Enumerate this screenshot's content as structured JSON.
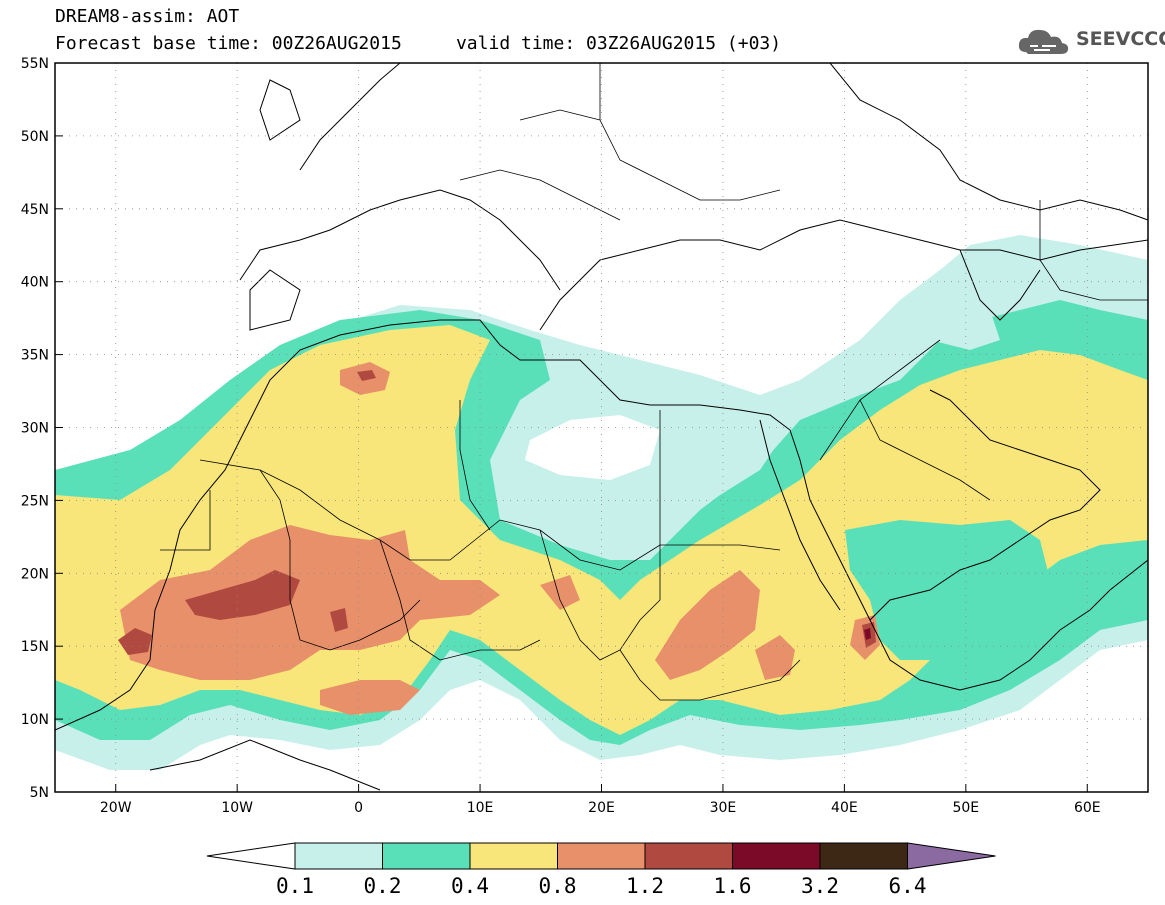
{
  "header": {
    "title_line1": "DREAM8-assim: AOT",
    "title_line2": "Forecast base time: 00Z26AUG2015     valid time: 03Z26AUG2015 (+03)"
  },
  "logo": {
    "text": "SEEVCCC",
    "icon": "cloud-icon",
    "color": "#666666"
  },
  "map": {
    "lon_range": [
      -25,
      65
    ],
    "lat_range": [
      5,
      55
    ],
    "lat_labels": [
      "55N",
      "50N",
      "45N",
      "40N",
      "35N",
      "30N",
      "25N",
      "20N",
      "15N",
      "10N",
      "5N"
    ],
    "lat_values": [
      55,
      50,
      45,
      40,
      35,
      30,
      25,
      20,
      15,
      10,
      5
    ],
    "lon_labels": [
      "20W",
      "10W",
      "0",
      "10E",
      "20E",
      "30E",
      "40E",
      "50E",
      "60E"
    ],
    "lon_values": [
      -20,
      -10,
      0,
      10,
      20,
      30,
      40,
      50,
      60
    ],
    "grid": "dotted"
  },
  "colorbar": {
    "labels": [
      "0.1",
      "0.2",
      "0.4",
      "0.8",
      "1.2",
      "1.6",
      "3.2",
      "6.4"
    ],
    "colors": [
      "#ffffff",
      "#c7f0ea",
      "#5ae0b8",
      "#f8e67a",
      "#e8906a",
      "#b04a40",
      "#7a0a28",
      "#3d2815",
      "#8a6aa0"
    ]
  }
}
